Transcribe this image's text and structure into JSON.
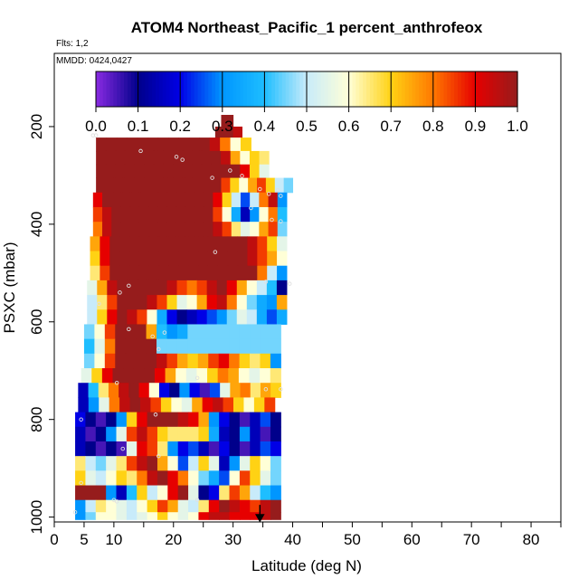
{
  "chart_data": {
    "type": "heatmap",
    "title": "ATOM4 Northeast_Pacific_1 percent_anthrofeox",
    "flights_label": "Flts: 1,2",
    "date_label": "MMDD: 0424,0427",
    "xlabel": "Latitude (deg N)",
    "ylabel": "PSXC (mbar)",
    "xlim": [
      0,
      85
    ],
    "ylim": [
      1010,
      50
    ],
    "y_inverted": true,
    "x_ticks": [
      0,
      5,
      10,
      20,
      30,
      40,
      50,
      60,
      70,
      80
    ],
    "y_ticks": [
      200,
      400,
      600,
      800,
      1000
    ],
    "colorbar": {
      "ticks": [
        "0.0",
        "0.1",
        "0.2",
        "0.3",
        "0.4",
        "0.5",
        "0.6",
        "0.7",
        "0.8",
        "0.9",
        "1.0"
      ],
      "range": [
        0,
        1
      ]
    },
    "marker_latitude": 34.5,
    "rows": [
      {
        "p": 190,
        "lat0": 28.0,
        "lat1": 30.0,
        "v": [
          1.0
        ]
      },
      {
        "p": 210,
        "lat0": 27.0,
        "lat1": 31.5,
        "v": [
          1.0,
          1.0,
          0.95
        ]
      },
      {
        "p": 235,
        "lat0": 7.0,
        "lat1": 33.0,
        "v": [
          1.0,
          1.0,
          1.0,
          1.0,
          1.0,
          1.0,
          1.0,
          1.0,
          1.0,
          1.0,
          1.0,
          0.95,
          0.8,
          0.6,
          0.7
        ]
      },
      {
        "p": 265,
        "lat0": 7.0,
        "lat1": 36.0,
        "v": [
          1.0,
          1.0,
          1.0,
          1.0,
          1.0,
          1.0,
          1.0,
          1.0,
          1.0,
          1.0,
          1.0,
          1.0,
          1.0,
          0.95,
          0.75,
          0.6,
          0.7,
          0.65
        ]
      },
      {
        "p": 290,
        "lat0": 7.0,
        "lat1": 36.0,
        "v": [
          1.0,
          1.0,
          1.0,
          1.0,
          1.0,
          1.0,
          1.0,
          1.0,
          1.0,
          1.0,
          1.0,
          1.0,
          1.0,
          1.0,
          1.0,
          0.9,
          0.7,
          0.55
        ]
      },
      {
        "p": 320,
        "lat0": 7.0,
        "lat1": 40.0,
        "v": [
          1.0,
          1.0,
          1.0,
          1.0,
          1.0,
          1.0,
          1.0,
          1.0,
          1.0,
          1.0,
          1.0,
          1.0,
          1.0,
          1.0,
          0.85,
          0.7,
          0.6,
          0.75,
          0.85,
          0.7,
          0.5,
          0.45
        ]
      },
      {
        "p": 350,
        "lat0": 6.5,
        "lat1": 39.0,
        "v": [
          0.9,
          1.0,
          1.0,
          1.0,
          1.0,
          1.0,
          1.0,
          1.0,
          1.0,
          1.0,
          1.0,
          1.0,
          1.0,
          0.9,
          0.7,
          0.5,
          0.25,
          0.5,
          0.8,
          0.95,
          0.3
        ]
      },
      {
        "p": 380,
        "lat0": 6.5,
        "lat1": 39.0,
        "v": [
          0.85,
          0.95,
          1.0,
          1.0,
          1.0,
          1.0,
          1.0,
          1.0,
          1.0,
          1.0,
          1.0,
          1.0,
          1.0,
          0.85,
          0.6,
          0.35,
          0.15,
          0.3,
          0.6,
          0.8,
          0.4
        ]
      },
      {
        "p": 410,
        "lat0": 6.5,
        "lat1": 39.0,
        "v": [
          0.8,
          0.95,
          1.0,
          1.0,
          1.0,
          1.0,
          1.0,
          1.0,
          1.0,
          1.0,
          1.0,
          1.0,
          1.0,
          0.95,
          0.85,
          0.65,
          0.55,
          0.6,
          0.75,
          0.85,
          0.45
        ]
      },
      {
        "p": 440,
        "lat0": 6.0,
        "lat1": 39.0,
        "v": [
          0.75,
          0.9,
          1.0,
          1.0,
          1.0,
          1.0,
          1.0,
          1.0,
          1.0,
          1.0,
          1.0,
          1.0,
          1.0,
          1.0,
          1.0,
          1.0,
          0.95,
          0.85,
          0.7,
          0.55
        ]
      },
      {
        "p": 470,
        "lat0": 6.0,
        "lat1": 39.0,
        "v": [
          0.7,
          0.9,
          1.0,
          1.0,
          1.0,
          1.0,
          1.0,
          1.0,
          1.0,
          1.0,
          1.0,
          1.0,
          1.0,
          1.0,
          1.0,
          1.0,
          0.95,
          0.85,
          0.75,
          0.6
        ]
      },
      {
        "p": 500,
        "lat0": 6.0,
        "lat1": 39.0,
        "v": [
          0.65,
          0.85,
          1.0,
          1.0,
          1.0,
          1.0,
          1.0,
          1.0,
          1.0,
          1.0,
          1.0,
          1.0,
          1.0,
          1.0,
          1.0,
          1.0,
          1.0,
          0.8,
          0.5,
          0.3
        ]
      },
      {
        "p": 530,
        "lat0": 5.5,
        "lat1": 39.0,
        "v": [
          0.55,
          0.75,
          0.95,
          1.0,
          1.0,
          1.0,
          1.0,
          1.0,
          0.95,
          0.85,
          0.8,
          0.85,
          0.95,
          1.0,
          0.9,
          0.75,
          0.6,
          0.5,
          0.4,
          0.1
        ]
      },
      {
        "p": 560,
        "lat0": 5.5,
        "lat1": 39.0,
        "v": [
          0.5,
          0.65,
          0.85,
          1.0,
          1.0,
          1.0,
          0.95,
          0.85,
          0.7,
          0.55,
          0.6,
          0.75,
          0.9,
          0.95,
          0.8,
          0.6,
          0.45,
          0.35,
          0.3,
          0.75
        ]
      },
      {
        "p": 590,
        "lat0": 5.5,
        "lat1": 39.0,
        "v": [
          0.5,
          0.7,
          0.9,
          1.0,
          0.95,
          0.85,
          0.6,
          0.35,
          0.2,
          0.1,
          0.15,
          0.2,
          0.25,
          0.3,
          0.45,
          0.55,
          0.5,
          0.35,
          0.25,
          0.35
        ]
      },
      {
        "p": 620,
        "lat0": 5.0,
        "lat1": 38.0,
        "v": [
          0.45,
          0.6,
          0.85,
          1.0,
          1.0,
          1.0,
          0.75,
          0.4,
          0.3,
          0.35,
          0.45,
          0.45,
          0.45,
          0.45,
          0.45,
          0.45,
          0.45,
          0.45,
          0.45
        ]
      },
      {
        "p": 650,
        "lat0": 5.0,
        "lat1": 38.0,
        "v": [
          0.4,
          0.55,
          0.8,
          1.0,
          1.0,
          1.0,
          1.0,
          0.45,
          0.45,
          0.45,
          0.45,
          0.45,
          0.45,
          0.45,
          0.45,
          0.45,
          0.45,
          0.45,
          0.45
        ]
      },
      {
        "p": 680,
        "lat0": 5.0,
        "lat1": 38.0,
        "v": [
          0.45,
          0.6,
          0.85,
          1.0,
          1.0,
          1.0,
          1.0,
          0.95,
          0.85,
          0.75,
          0.7,
          0.75,
          0.85,
          0.9,
          0.8,
          0.7,
          0.65,
          0.7,
          0.3
        ]
      },
      {
        "p": 710,
        "lat0": 4.5,
        "lat1": 38.0,
        "v": [
          0.55,
          0.7,
          0.9,
          1.0,
          1.0,
          1.0,
          1.0,
          0.9,
          0.75,
          0.6,
          0.55,
          0.6,
          0.7,
          0.8,
          0.75,
          0.6,
          0.55,
          0.6,
          0.65
        ]
      },
      {
        "p": 740,
        "lat0": 4.0,
        "lat1": 38.0,
        "v": [
          0.15,
          0.4,
          0.65,
          0.8,
          0.95,
          1.0,
          0.9,
          0.6,
          0.2,
          0.1,
          0.3,
          0.2,
          0.05,
          0.25,
          0.55,
          0.75,
          0.8,
          0.65,
          0.75,
          0.7
        ]
      },
      {
        "p": 770,
        "lat0": 4.0,
        "lat1": 37.0,
        "v": [
          0.15,
          0.3,
          0.55,
          0.8,
          0.95,
          1.0,
          0.95,
          0.85,
          0.7,
          0.6,
          0.55,
          0.75,
          0.9,
          0.95,
          0.85,
          0.7,
          0.6,
          0.7,
          0.85
        ]
      },
      {
        "p": 800,
        "lat0": 3.5,
        "lat1": 38.0,
        "v": [
          0.2,
          0.1,
          0.05,
          0.1,
          0.3,
          0.7,
          0.9,
          1.0,
          1.0,
          1.0,
          0.95,
          0.9,
          0.75,
          0.3,
          0.2,
          0.1,
          0.05,
          0.15,
          0.25,
          0.1
        ]
      },
      {
        "p": 830,
        "lat0": 3.5,
        "lat1": 38.0,
        "v": [
          0.15,
          0.05,
          0.1,
          0.3,
          0.55,
          0.85,
          0.95,
          0.85,
          0.7,
          0.65,
          0.65,
          0.65,
          0.7,
          0.35,
          0.15,
          0.1,
          0.3,
          0.15,
          0.05,
          0.1
        ]
      },
      {
        "p": 860,
        "lat0": 3.5,
        "lat1": 38.0,
        "v": [
          0.15,
          0.1,
          0.05,
          0.1,
          0.05,
          0.55,
          0.9,
          0.85,
          0.65,
          0.3,
          0.2,
          0.25,
          0.15,
          0.05,
          0.2,
          0.1,
          0.05,
          0.15,
          0.25,
          0.2
        ]
      },
      {
        "p": 890,
        "lat0": 3.5,
        "lat1": 38.0,
        "v": [
          0.65,
          0.5,
          0.45,
          0.55,
          0.65,
          0.85,
          0.95,
          1.0,
          0.75,
          0.6,
          0.25,
          0.5,
          0.7,
          0.55,
          0.15,
          0.3,
          0.55,
          0.7,
          0.6,
          0.45
        ]
      },
      {
        "p": 920,
        "lat0": 3.5,
        "lat1": 38.0,
        "v": [
          0.7,
          0.55,
          0.5,
          0.6,
          0.7,
          0.65,
          0.8,
          0.95,
          1.0,
          0.9,
          0.8,
          0.6,
          0.45,
          0.35,
          0.25,
          0.6,
          0.85,
          0.7,
          0.55,
          0.45
        ]
      },
      {
        "p": 950,
        "lat0": 3.5,
        "lat1": 38.0,
        "v": [
          1.0,
          1.0,
          1.0,
          0.3,
          0.15,
          0.4,
          0.7,
          0.5,
          0.6,
          0.9,
          1.0,
          0.55,
          0.1,
          0.2,
          0.65,
          0.85,
          0.75,
          0.5,
          0.4,
          0.3
        ]
      },
      {
        "p": 980,
        "lat0": 3.5,
        "lat1": 38.0,
        "v": [
          0.3,
          0.5,
          0.65,
          0.6,
          0.55,
          0.5,
          0.6,
          0.7,
          0.85,
          0.75,
          0.55,
          0.5,
          0.65,
          0.9,
          1.0,
          0.95,
          0.9,
          0.85,
          0.95,
          1.0
        ]
      },
      {
        "p": 1000,
        "lat0": 3.5,
        "lat1": 38.0,
        "v": [
          0.3,
          0.45,
          0.6,
          0.6,
          0.55,
          0.5,
          0.55,
          0.6,
          0.7,
          0.6,
          0.55,
          0.6,
          0.9,
          0.95,
          0.95,
          0.9,
          0.9,
          0.9,
          0.95,
          1.0
        ]
      }
    ],
    "points": [
      [
        6.5,
        218
      ],
      [
        7.0,
        218
      ],
      [
        14.5,
        250
      ],
      [
        20.5,
        262
      ],
      [
        21.5,
        268
      ],
      [
        26.5,
        305
      ],
      [
        29.5,
        290
      ],
      [
        31.5,
        301
      ],
      [
        34.5,
        328
      ],
      [
        36.0,
        338
      ],
      [
        38.0,
        342
      ],
      [
        37.5,
        330
      ],
      [
        33.0,
        367
      ],
      [
        36.5,
        391
      ],
      [
        38.0,
        394
      ],
      [
        27.0,
        457
      ],
      [
        35.5,
        518
      ],
      [
        39.5,
        522
      ],
      [
        12.5,
        526
      ],
      [
        11.0,
        540
      ],
      [
        7.5,
        563
      ],
      [
        12.5,
        615
      ],
      [
        18.5,
        622
      ],
      [
        16.5,
        630
      ],
      [
        17.5,
        656
      ],
      [
        10.5,
        725
      ],
      [
        24.0,
        715
      ],
      [
        35.5,
        738
      ],
      [
        38.0,
        738
      ],
      [
        17.0,
        790
      ],
      [
        4.5,
        800
      ],
      [
        11.5,
        860
      ],
      [
        17.5,
        875
      ],
      [
        4.5,
        930
      ],
      [
        10.0,
        965
      ],
      [
        10.5,
        968
      ],
      [
        24.0,
        965
      ],
      [
        3.5,
        990
      ]
    ]
  }
}
